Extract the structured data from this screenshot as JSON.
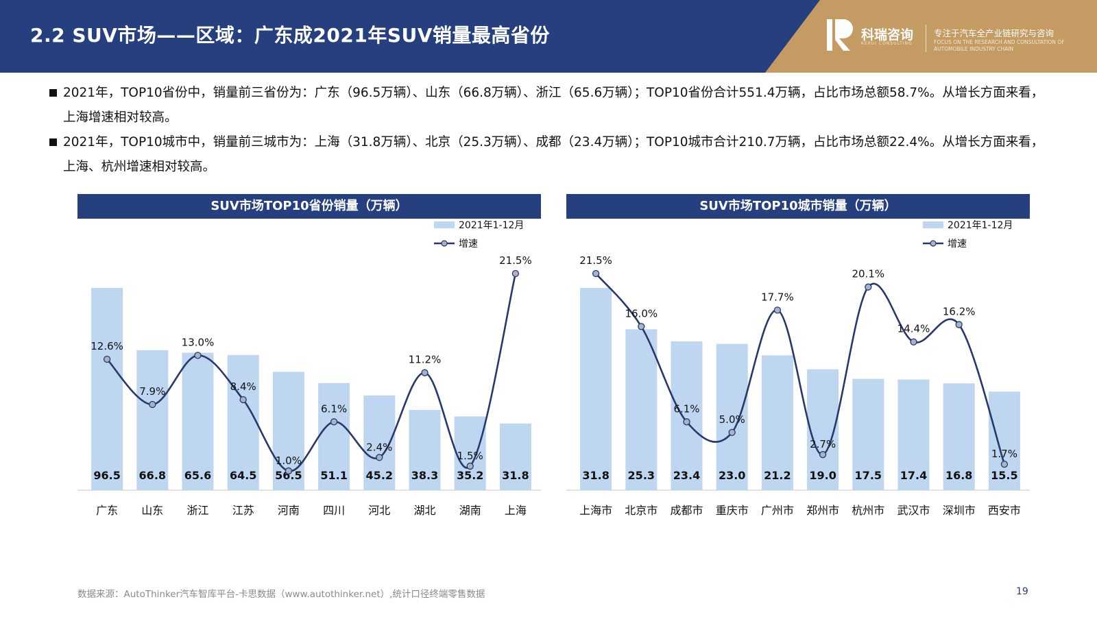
{
  "header": {
    "title": "2.2 SUV市场——区域：广东成2021年SUV销量最高省份",
    "logo_name": "科瑞咨询",
    "logo_sub": "KERUI CONSULTING",
    "slogan_cn": "专注于汽车全产业链研究与咨询",
    "slogan_en": "FOCUS ON THE RESEARCH AND CONSULTATION OF AUTOMOBILE INDUSTRY CHAIN"
  },
  "bullets": [
    "2021年，TOP10省份中，销量前三省份为：广东（96.5万辆）、山东（66.8万辆）、浙江（65.6万辆）；TOP10省份合计551.4万辆，占比市场总额58.7%。从增长方面来看，上海增速相对较高。",
    "2021年，TOP10城市中，销量前三城市为：上海（31.8万辆）、北京（25.3万辆）、成都（23.4万辆）；TOP10城市合计210.7万辆，占比市场总额22.4%。从增长方面来看，上海、杭州增速相对较高。"
  ],
  "colors": {
    "bar": "#bed6f0",
    "line": "#27386b",
    "header": "#26407f",
    "gold": "#c49b62"
  },
  "chart_data": [
    {
      "type": "bar",
      "title": "SUV市场TOP10省份销量（万辆）",
      "categories": [
        "广东",
        "山东",
        "浙江",
        "江苏",
        "河南",
        "四川",
        "河北",
        "湖北",
        "湖南",
        "上海"
      ],
      "series": [
        {
          "name": "2021年1-12月",
          "type": "bar",
          "values": [
            96.5,
            66.8,
            65.6,
            64.5,
            56.5,
            51.1,
            45.2,
            38.3,
            35.2,
            31.8
          ]
        },
        {
          "name": "增速",
          "type": "line",
          "values": [
            "12.6%",
            "7.9%",
            "13.0%",
            "8.4%",
            "1.0%",
            "6.1%",
            "2.4%",
            "11.2%",
            "1.5%",
            "21.5%"
          ]
        }
      ],
      "legend_position": "top-right",
      "grid": false
    },
    {
      "type": "bar",
      "title": "SUV市场TOP10城市销量（万辆）",
      "categories": [
        "上海市",
        "北京市",
        "成都市",
        "重庆市",
        "广州市",
        "郑州市",
        "杭州市",
        "武汉市",
        "深圳市",
        "西安市"
      ],
      "series": [
        {
          "name": "2021年1-12月",
          "type": "bar",
          "values": [
            31.8,
            25.3,
            23.4,
            23.0,
            21.2,
            19.0,
            17.5,
            17.4,
            16.8,
            15.5
          ]
        },
        {
          "name": "增速",
          "type": "line",
          "values": [
            "21.5%",
            "16.0%",
            "6.1%",
            "5.0%",
            "17.7%",
            "2.7%",
            "20.1%",
            "14.4%",
            "16.2%",
            "1.7%"
          ]
        }
      ],
      "legend_position": "top-right",
      "grid": false
    }
  ],
  "footer": {
    "source": "数据来源：AutoThinker汽车智库平台-卡思数据（www.autothinker.net）,统计口径终端零售数据",
    "page": "19"
  }
}
